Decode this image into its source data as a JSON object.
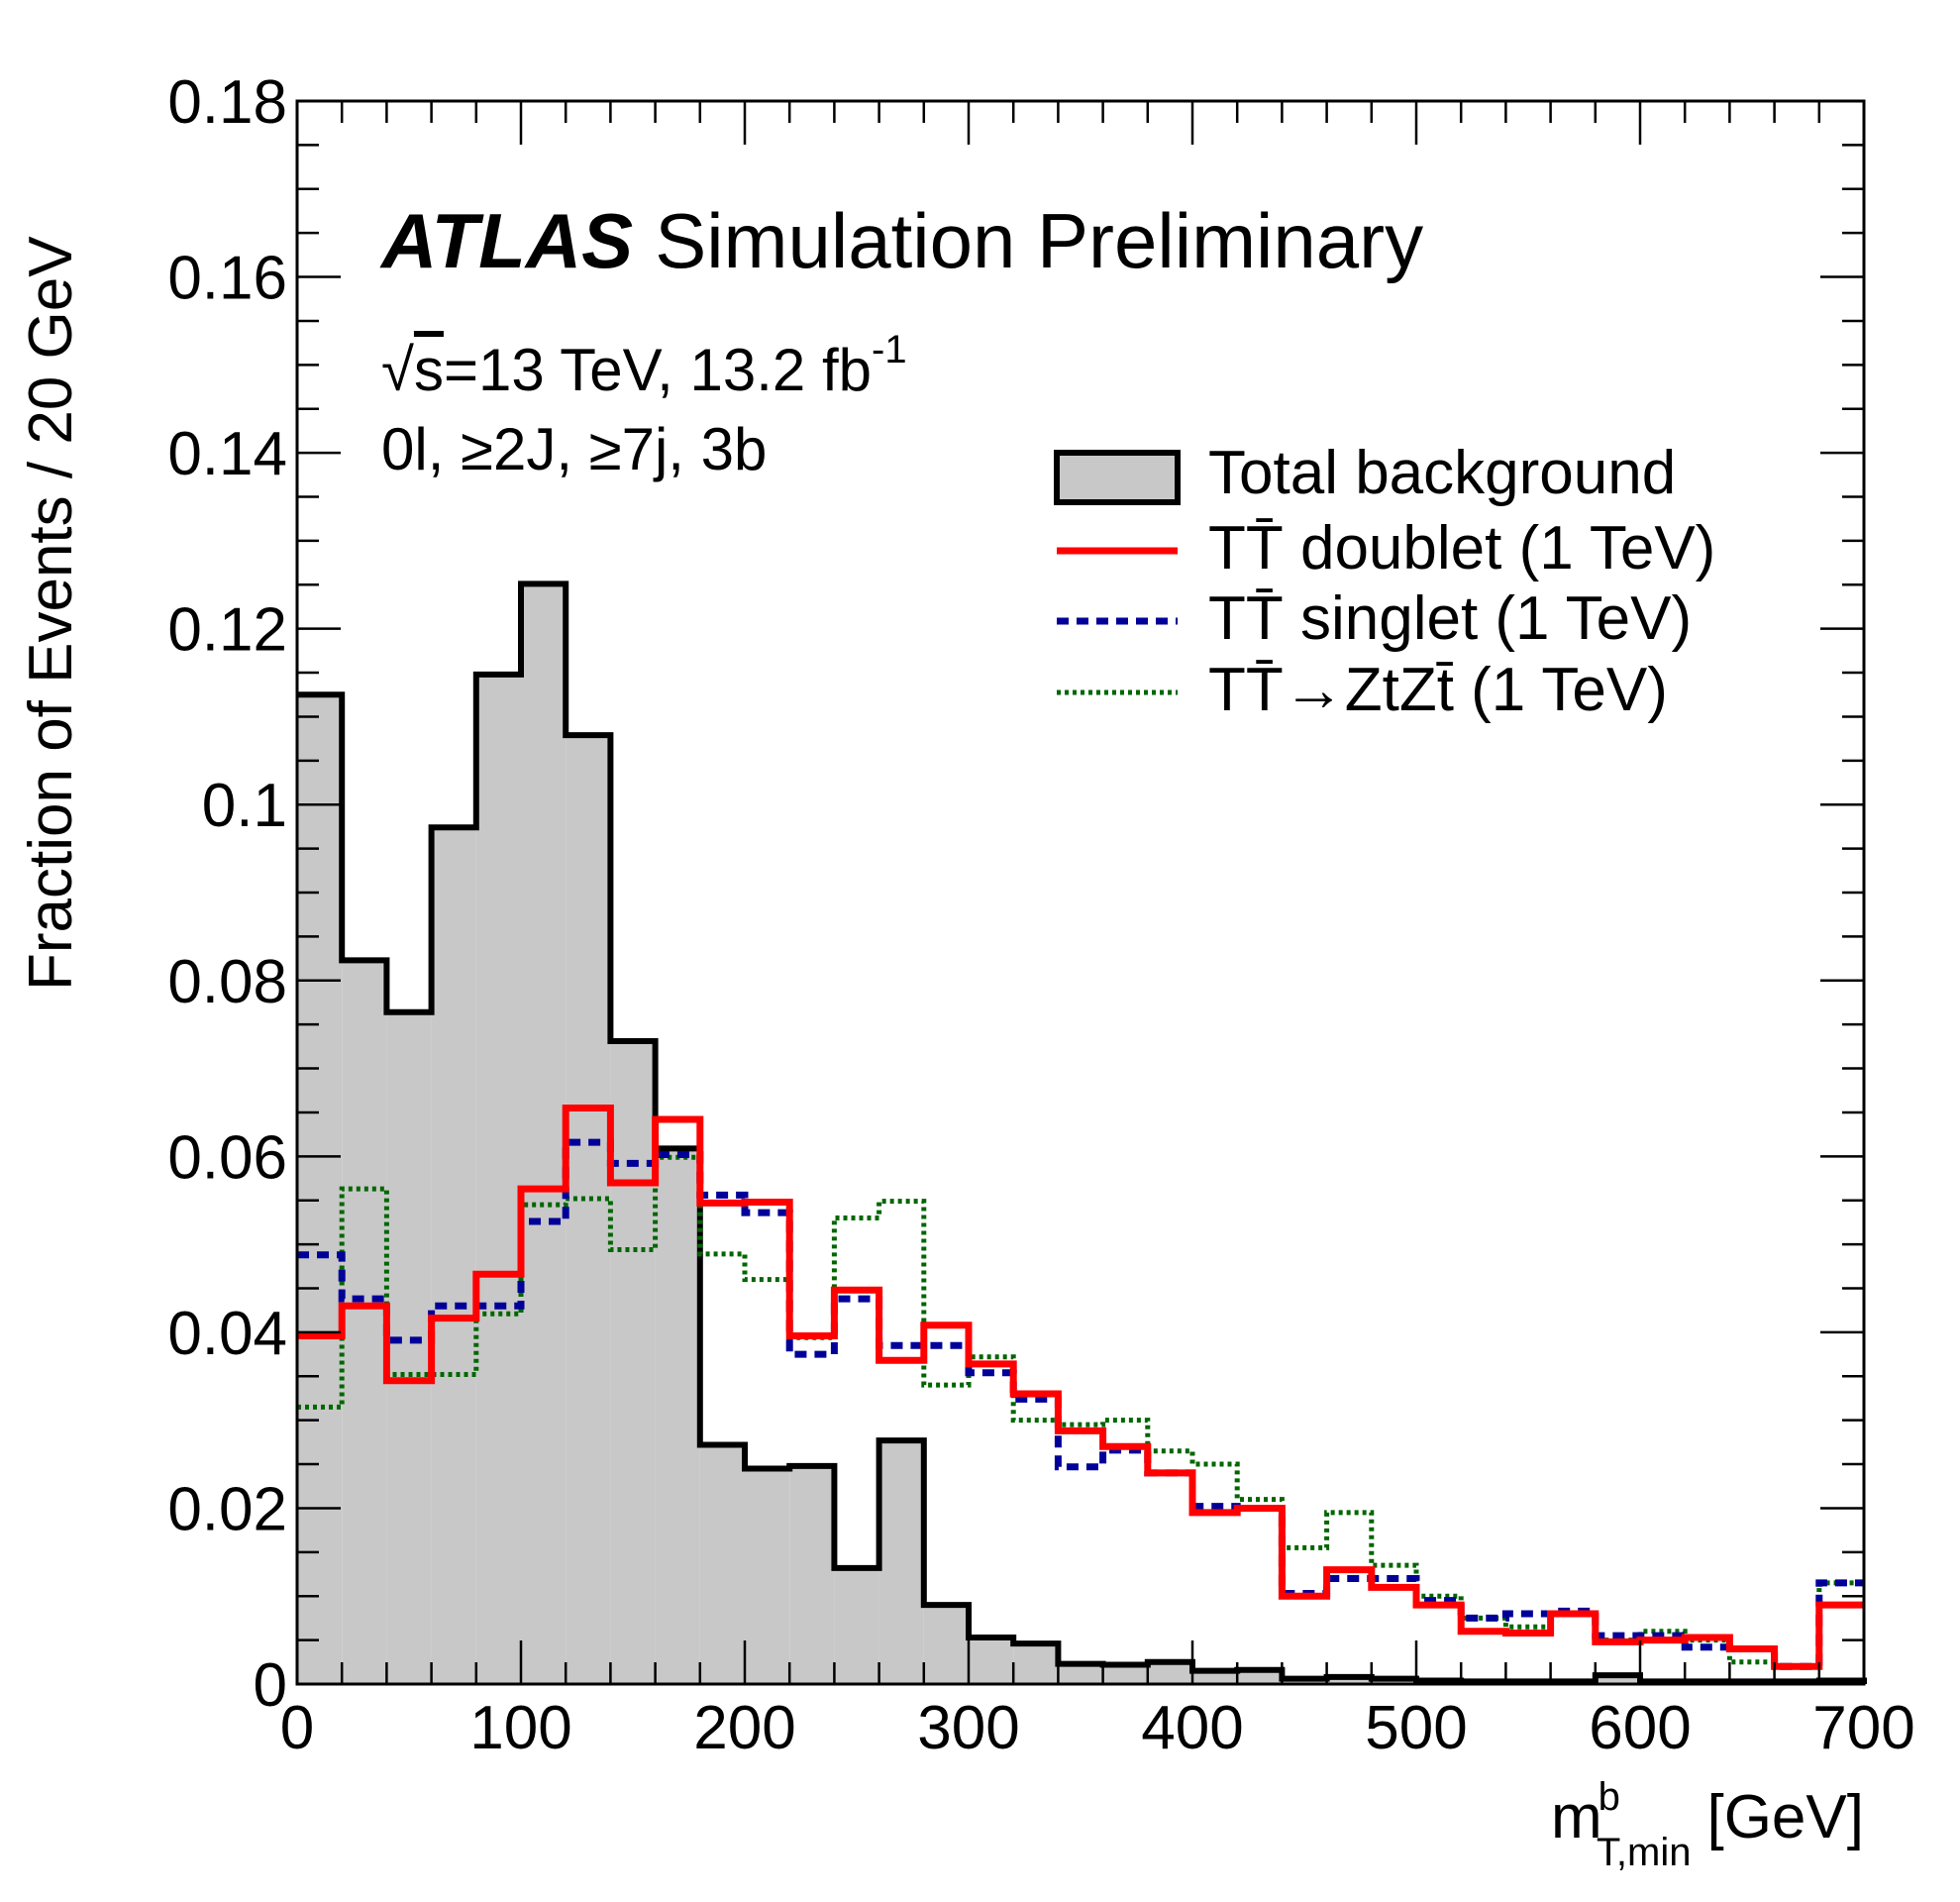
{
  "chart_data": {
    "type": "line",
    "bin_edges": [
      0,
      20,
      40,
      60,
      80,
      100,
      120,
      140,
      160,
      180,
      200,
      220,
      240,
      260,
      280,
      300,
      320,
      340,
      360,
      380,
      400,
      420,
      440,
      460,
      480,
      500,
      520,
      540,
      560,
      580,
      600,
      620,
      640,
      660,
      680,
      700
    ],
    "xlim": [
      0,
      700
    ],
    "ylim": [
      0,
      0.18
    ],
    "x_ticks": [
      "0",
      "100",
      "200",
      "300",
      "400",
      "500",
      "600",
      "700"
    ],
    "y_ticks": [
      "0",
      "0.02",
      "0.04",
      "0.06",
      "0.08",
      "0.1",
      "0.12",
      "0.14",
      "0.16",
      "0.18"
    ],
    "ylabel": "Fraction of Events / 20 GeV",
    "xlabel": {
      "main": "m",
      "sup": "b",
      "sub": "T,min",
      "unit": "[GeV]"
    },
    "annotations": {
      "experiment": "ATLAS",
      "status": "Simulation Preliminary",
      "energy_prefix": "√",
      "energy_s": "s",
      "energy_text": "=13 TeV, 13.2 fb",
      "energy_sup": "-1",
      "selection": "0l, ≥2J, ≥7j, 3b"
    },
    "series": [
      {
        "name": "Total background",
        "style": "filled",
        "color": "#000000",
        "fill": "#c8c8c8",
        "values": [
          0.1125,
          0.0823,
          0.0764,
          0.0974,
          0.1148,
          0.1251,
          0.1079,
          0.0731,
          0.0609,
          0.0272,
          0.0245,
          0.0248,
          0.0132,
          0.0277,
          0.009,
          0.0053,
          0.0046,
          0.0023,
          0.0022,
          0.0025,
          0.0015,
          0.0016,
          0.0006,
          0.0008,
          0.0006,
          0.0004,
          0.0003,
          0.0003,
          0.0003,
          0.001,
          0.0003,
          0.0003,
          0.0003,
          0.0003,
          0.0004
        ]
      },
      {
        "name": "TT̄ doublet (1 TeV)",
        "label_main": "TT̄ doublet (1 TeV)",
        "style": "solid",
        "color": "#ff0000",
        "values": [
          0.0396,
          0.043,
          0.0345,
          0.0416,
          0.0466,
          0.0563,
          0.0655,
          0.057,
          0.0642,
          0.0547,
          0.0548,
          0.0396,
          0.0448,
          0.0368,
          0.0408,
          0.0364,
          0.033,
          0.0288,
          0.027,
          0.024,
          0.0195,
          0.02,
          0.01,
          0.013,
          0.011,
          0.009,
          0.006,
          0.0058,
          0.008,
          0.0048,
          0.005,
          0.0053,
          0.004,
          0.002,
          0.009
        ]
      },
      {
        "name": "TT̄ singlet (1 TeV)",
        "label_main": "TT̄ singlet (1 TeV)",
        "style": "dashed",
        "color": "#000099",
        "values": [
          0.0488,
          0.0438,
          0.0391,
          0.043,
          0.043,
          0.0526,
          0.0616,
          0.0592,
          0.0602,
          0.0556,
          0.0536,
          0.0375,
          0.0438,
          0.0385,
          0.0385,
          0.0354,
          0.0324,
          0.0247,
          0.0266,
          0.024,
          0.0202,
          0.02,
          0.0103,
          0.012,
          0.012,
          0.0095,
          0.0075,
          0.008,
          0.0083,
          0.0055,
          0.0055,
          0.0042,
          0.004,
          0.002,
          0.0115
        ]
      },
      {
        "name": "TT̄→ZtZt̄ (1 TeV)",
        "label_main": "TT̄→ZtZt̄ (1 TeV)",
        "style": "dotted",
        "color": "#006600",
        "values": [
          0.0315,
          0.0563,
          0.0352,
          0.0352,
          0.0421,
          0.0545,
          0.0552,
          0.0494,
          0.0599,
          0.0489,
          0.046,
          0.0394,
          0.053,
          0.0549,
          0.034,
          0.0372,
          0.03,
          0.0295,
          0.03,
          0.0265,
          0.025,
          0.021,
          0.0155,
          0.0195,
          0.0135,
          0.01,
          0.0075,
          0.0065,
          0.008,
          0.005,
          0.006,
          0.005,
          0.0025,
          0.002,
          0.0115
        ]
      }
    ],
    "legend_position": "top-right"
  }
}
